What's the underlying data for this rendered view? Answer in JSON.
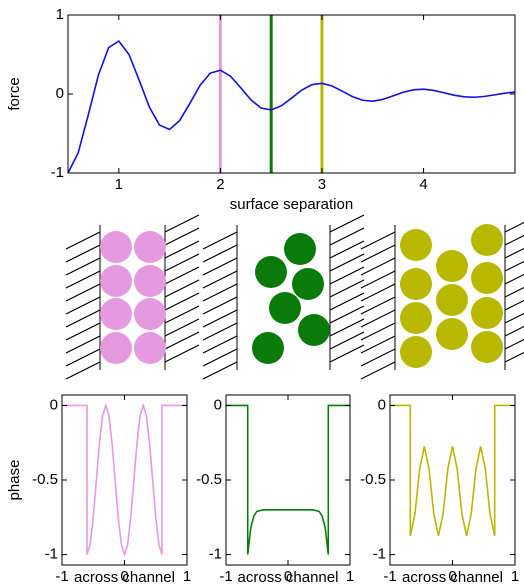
{
  "chart_data": [
    {
      "type": "line",
      "xlabel": "surface separation",
      "ylabel": "force",
      "x": [
        0.5,
        0.6,
        0.7,
        0.8,
        0.9,
        1.0,
        1.1,
        1.2,
        1.3,
        1.4,
        1.5,
        1.6,
        1.7,
        1.8,
        1.9,
        2.0,
        2.1,
        2.2,
        2.3,
        2.4,
        2.5,
        2.6,
        2.7,
        2.8,
        2.9,
        3.0,
        3.1,
        3.2,
        3.3,
        3.4,
        3.5,
        3.6,
        3.7,
        3.8,
        3.9,
        4.0,
        4.1,
        4.2,
        4.3,
        4.4,
        4.5,
        4.6,
        4.7,
        4.8,
        4.9
      ],
      "series": [
        {
          "color": "#1010e0",
          "values": [
            -1.0,
            -0.746,
            -0.263,
            0.243,
            0.587,
            0.67,
            0.5,
            0.176,
            -0.163,
            -0.393,
            -0.449,
            -0.335,
            -0.118,
            0.109,
            0.264,
            0.301,
            0.225,
            0.079,
            -0.073,
            -0.177,
            -0.202,
            -0.15,
            -0.053,
            0.049,
            0.118,
            0.135,
            0.101,
            0.036,
            -0.033,
            -0.079,
            -0.091,
            -0.068,
            -0.024,
            0.022,
            0.053,
            0.061,
            0.045,
            0.016,
            -0.015,
            -0.036,
            -0.041,
            -0.03,
            -0.011,
            0.01,
            0.024
          ]
        }
      ],
      "markers": [
        {
          "x": 2,
          "color": "#e59ae0"
        },
        {
          "x": 2.5,
          "color": "#0a7a0a"
        },
        {
          "x": 3,
          "color": "#b8b800"
        }
      ],
      "xlim": [
        0.5,
        4.9
      ],
      "xticks": [
        1,
        2,
        3,
        4
      ],
      "ylim": [
        -1,
        1
      ],
      "yticks": [
        -1,
        0,
        1
      ]
    },
    {
      "type": "line",
      "xlabel": "across channel",
      "ylabel": "phase",
      "x": [
        -1,
        -0.6,
        -0.6,
        -0.55,
        -0.5,
        -0.45,
        -0.4,
        -0.35,
        -0.3,
        -0.25,
        -0.2,
        -0.15,
        -0.1,
        -0.05,
        0,
        0.05,
        0.1,
        0.15,
        0.2,
        0.25,
        0.3,
        0.35,
        0.4,
        0.45,
        0.5,
        0.55,
        0.6,
        0.6,
        1
      ],
      "series": [
        {
          "color": "#e59ae0",
          "values": [
            0,
            0,
            -1,
            -0.933,
            -0.75,
            -0.5,
            -0.25,
            -0.067,
            0,
            -0.067,
            -0.25,
            -0.5,
            -0.75,
            -0.933,
            -1,
            -0.933,
            -0.75,
            -0.5,
            -0.25,
            -0.067,
            0,
            -0.067,
            -0.25,
            -0.5,
            -0.75,
            -0.933,
            -1,
            0,
            0
          ]
        }
      ],
      "xlim": [
        -1,
        1
      ],
      "xticks": [
        -1,
        0,
        1
      ],
      "ylim": [
        -1.07,
        0.07
      ],
      "yticks": [
        0,
        -0.5,
        -1
      ]
    },
    {
      "type": "line",
      "xlabel": "across channel",
      "x": [
        -1,
        -0.65,
        -0.65,
        -0.6,
        -0.55,
        -0.5,
        -0.4,
        -0.3,
        -0.2,
        -0.1,
        0,
        0.1,
        0.2,
        0.3,
        0.4,
        0.5,
        0.55,
        0.6,
        0.65,
        0.65,
        1
      ],
      "series": [
        {
          "color": "#0a7a0a",
          "values": [
            0,
            0,
            -1,
            -0.82,
            -0.74,
            -0.71,
            -0.7,
            -0.7,
            -0.7,
            -0.7,
            -0.7,
            -0.7,
            -0.7,
            -0.7,
            -0.7,
            -0.71,
            -0.74,
            -0.82,
            -1,
            0,
            0
          ]
        }
      ],
      "xlim": [
        -1,
        1
      ],
      "xticks": [
        -1,
        0,
        1
      ],
      "ylim": [
        -1.07,
        0.07
      ],
      "yticks": [
        0,
        -0.5,
        -1
      ]
    },
    {
      "type": "line",
      "xlabel": "across channel",
      "x": [
        -1,
        -0.675,
        -0.675,
        -0.6,
        -0.525,
        -0.45,
        -0.375,
        -0.3,
        -0.225,
        -0.15,
        -0.075,
        0,
        0.075,
        0.15,
        0.225,
        0.3,
        0.375,
        0.45,
        0.525,
        0.6,
        0.675,
        0.675,
        1
      ],
      "series": [
        {
          "color": "#b8b800",
          "values": [
            0,
            0,
            -0.875,
            -0.725,
            -0.425,
            -0.275,
            -0.425,
            -0.725,
            -0.875,
            -0.725,
            -0.425,
            -0.275,
            -0.425,
            -0.725,
            -0.875,
            -0.725,
            -0.425,
            -0.275,
            -0.425,
            -0.725,
            -0.875,
            0,
            0
          ]
        }
      ],
      "xlim": [
        -1,
        1
      ],
      "xticks": [
        -1,
        0,
        1
      ],
      "ylim": [
        -1.07,
        0.07
      ],
      "yticks": [
        0,
        -0.5,
        -1
      ]
    }
  ]
}
